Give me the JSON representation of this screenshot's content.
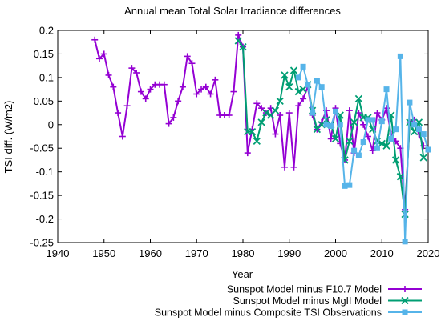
{
  "chart_data": {
    "type": "line",
    "title": "Annual mean Total Solar Irradiance differences",
    "xlabel": "Year",
    "ylabel": "TSI diff. (W/m2)",
    "xlim": [
      1940,
      2020
    ],
    "ylim": [
      -0.25,
      0.2
    ],
    "xticks": [
      1940,
      1950,
      1960,
      1970,
      1980,
      1990,
      2000,
      2010,
      2020
    ],
    "yticks": [
      -0.25,
      -0.2,
      -0.15,
      -0.1,
      -0.05,
      0,
      0.05,
      0.1,
      0.15,
      0.2
    ],
    "yticklabels": [
      "-0.25",
      "-0.2",
      "-0.15",
      "-0.1",
      "-0.05",
      "0",
      "0.05",
      "0.1",
      "0.15",
      "0.2"
    ],
    "legend_position": "bottom-right",
    "series": [
      {
        "name": "Sunspot Model minus F10.7 Model",
        "color": "#9400d3",
        "marker": "plus",
        "x": [
          1948,
          1949,
          1950,
          1951,
          1952,
          1953,
          1954,
          1955,
          1956,
          1957,
          1958,
          1959,
          1960,
          1961,
          1962,
          1963,
          1964,
          1965,
          1966,
          1967,
          1968,
          1969,
          1970,
          1971,
          1972,
          1973,
          1974,
          1975,
          1976,
          1977,
          1978,
          1979,
          1980,
          1981,
          1982,
          1983,
          1984,
          1985,
          1986,
          1987,
          1988,
          1989,
          1990,
          1991,
          1992,
          1993,
          1994,
          1995,
          1996,
          1997,
          1998,
          1999,
          2000,
          2001,
          2002,
          2003,
          2004,
          2005,
          2006,
          2007,
          2008,
          2009,
          2010,
          2011,
          2012,
          2013,
          2014,
          2015,
          2016,
          2017,
          2018,
          2019
        ],
        "y": [
          0.18,
          0.14,
          0.15,
          0.105,
          0.08,
          0.025,
          -0.025,
          0.04,
          0.12,
          0.11,
          0.07,
          0.055,
          0.075,
          0.085,
          0.085,
          0.085,
          0.002,
          0.015,
          0.05,
          0.08,
          0.145,
          0.13,
          0.065,
          0.075,
          0.08,
          0.065,
          0.095,
          0.02,
          0.02,
          0.02,
          0.07,
          0.19,
          0.165,
          -0.06,
          -0.01,
          0.045,
          0.035,
          0.025,
          0.035,
          -0.02,
          0.02,
          -0.09,
          0.025,
          -0.09,
          0.04,
          0.055,
          0.08,
          0.02,
          -0.01,
          0.005,
          0.03,
          -0.03,
          0.035,
          -0.04,
          -0.075,
          0.03,
          -0.06,
          0.025,
          0.0,
          -0.025,
          -0.055,
          0.025,
          0.01,
          0.035,
          -0.02,
          -0.035,
          -0.05,
          -0.18,
          0.005,
          0.01,
          -0.02,
          -0.045
        ]
      },
      {
        "name": "Sunspot Model minus MgII Model",
        "color": "#009e73",
        "marker": "cross",
        "x": [
          1979,
          1980,
          1981,
          1982,
          1983,
          1984,
          1985,
          1986,
          1987,
          1988,
          1989,
          1990,
          1991,
          1992,
          1993,
          1994,
          1995,
          1996,
          1997,
          1998,
          1999,
          2000,
          2001,
          2002,
          2003,
          2004,
          2005,
          2006,
          2007,
          2008,
          2009,
          2010,
          2011,
          2012,
          2013,
          2014,
          2015,
          2016,
          2017,
          2018,
          2019
        ],
        "y": [
          0.178,
          0.165,
          -0.015,
          -0.015,
          -0.035,
          0.005,
          0.025,
          0.02,
          0.03,
          0.05,
          0.105,
          0.08,
          0.115,
          0.07,
          0.075,
          0.085,
          0.03,
          -0.01,
          0.0,
          0.01,
          0.0,
          -0.03,
          0.02,
          -0.075,
          -0.035,
          0.005,
          0.055,
          0.015,
          0.015,
          -0.01,
          -0.035,
          -0.04,
          -0.045,
          0.02,
          -0.075,
          -0.11,
          -0.19,
          0.005,
          -0.015,
          0.005,
          -0.07
        ]
      },
      {
        "name": "Sunspot Model minus Composite TSI Observations",
        "color": "#56b4e9",
        "marker": "square",
        "x": [
          1992,
          1993,
          1994,
          1995,
          1996,
          1997,
          1998,
          1999,
          2000,
          2001,
          2002,
          2003,
          2004,
          2005,
          2006,
          2007,
          2008,
          2009,
          2010,
          2011,
          2012,
          2013,
          2014,
          2015,
          2016,
          2017,
          2018,
          2019,
          2020
        ],
        "y": [
          0.1,
          0.123,
          0.085,
          0.025,
          0.093,
          0.08,
          0.0,
          -0.003,
          0.028,
          0.0,
          -0.13,
          -0.128,
          -0.055,
          -0.065,
          -0.037,
          0.01,
          0.01,
          -0.05,
          0.007,
          0.075,
          -0.03,
          -0.01,
          0.145,
          -0.248,
          0.047,
          0.0,
          -0.01,
          -0.02,
          -0.053
        ]
      }
    ]
  }
}
